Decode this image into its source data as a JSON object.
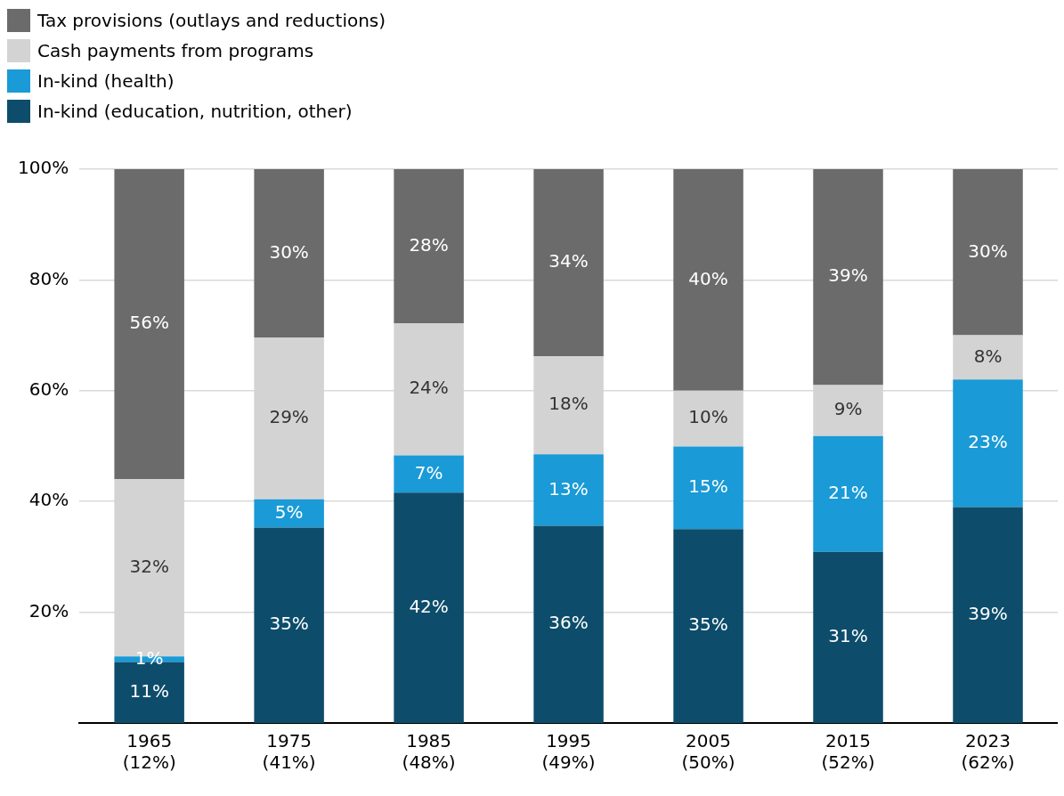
{
  "chart_data": {
    "type": "bar",
    "stacked": true,
    "categories": [
      "1965\n(12%)",
      "1975\n(41%)",
      "1985\n(48%)",
      "1995\n(49%)",
      "2005\n(50%)",
      "2015\n(52%)",
      "2023\n(62%)"
    ],
    "series": [
      {
        "name": "In-kind (education, nutrition, other)",
        "color": "#0d4d6b",
        "values": [
          11,
          35.3,
          41.6,
          35.6,
          35,
          30.9,
          39
        ],
        "value_labels": [
          "11%",
          "35%",
          "42%",
          "36%",
          "35%",
          "31%",
          "39%"
        ]
      },
      {
        "name": "In-kind (health)",
        "color": "#1a9ad6",
        "values": [
          1,
          5.1,
          6.7,
          12.9,
          14.9,
          20.9,
          23
        ],
        "value_labels": [
          "1%",
          "5%",
          "7%",
          "13%",
          "15%",
          "21%",
          "23%"
        ]
      },
      {
        "name": "Cash payments from programs",
        "color": "#d3d3d3",
        "values": [
          32,
          29.2,
          23.9,
          17.7,
          10.1,
          9.2,
          8
        ],
        "value_labels": [
          "32%",
          "29%",
          "24%",
          "18%",
          "10%",
          "9%",
          "8%"
        ]
      },
      {
        "name": "Tax provisions (outlays and reductions)",
        "color": "#6b6b6b",
        "values": [
          56,
          30.4,
          27.8,
          33.8,
          40,
          39,
          30
        ],
        "value_labels": [
          "56%",
          "30%",
          "28%",
          "34%",
          "40%",
          "39%",
          "30%"
        ]
      }
    ],
    "ylim": [
      0,
      100
    ],
    "yticks": [
      {
        "value": 20,
        "label": "20%"
      },
      {
        "value": 40,
        "label": "40%"
      },
      {
        "value": 60,
        "label": "60%"
      },
      {
        "value": 80,
        "label": "80%"
      },
      {
        "value": 100,
        "label": "100%"
      }
    ],
    "grid": "y",
    "legend": "top left"
  }
}
